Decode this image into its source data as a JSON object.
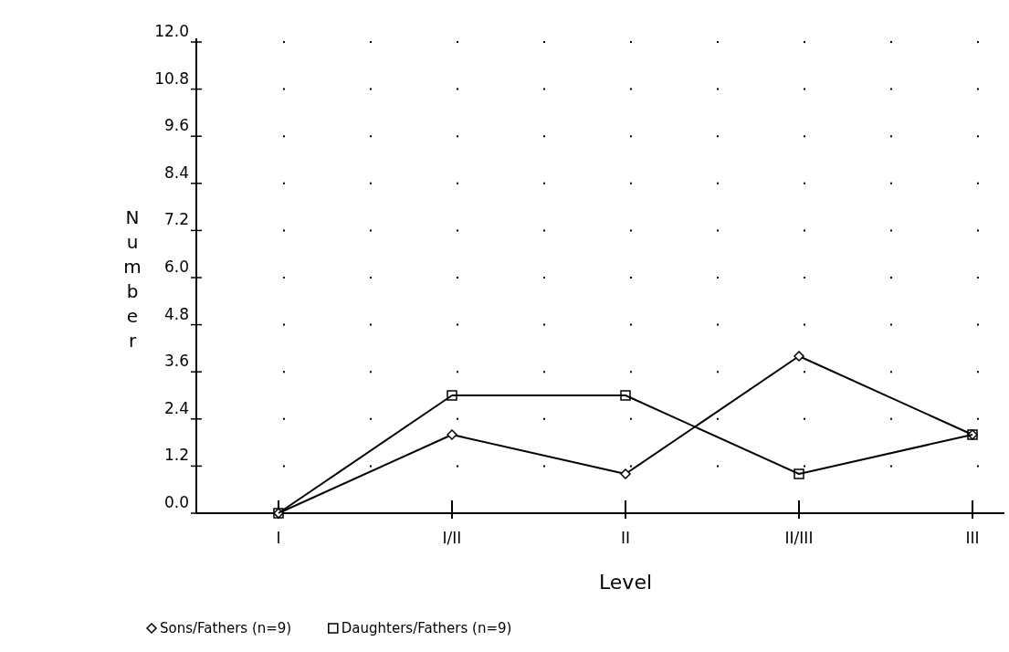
{
  "chart_data": {
    "type": "line",
    "xlabel": "Level",
    "ylabel": "Number",
    "categories": [
      "I",
      "I/II",
      "II",
      "II/III",
      "III"
    ],
    "series": [
      {
        "name": "Sons/Fathers (n=9)",
        "color": "#000000",
        "marker": "diamond",
        "values": [
          0,
          2,
          1,
          4,
          2
        ]
      },
      {
        "name": "Daughters/Fathers (n=9)",
        "color": "#000000",
        "marker": "square",
        "values": [
          0,
          3,
          3,
          1,
          2
        ]
      }
    ],
    "ylim": [
      0,
      12
    ],
    "yticks": [
      {
        "value": 0,
        "label": "0.0"
      },
      {
        "value": 1.2,
        "label": "1.2"
      },
      {
        "value": 2.4,
        "label": "2.4"
      },
      {
        "value": 3.6,
        "label": "3.6"
      },
      {
        "value": 4.8,
        "label": "4.8"
      },
      {
        "value": 6,
        "label": "6.0"
      },
      {
        "value": 7.2,
        "label": "7.2"
      },
      {
        "value": 8.4,
        "label": "8.4"
      },
      {
        "value": 9.6,
        "label": "9.6"
      },
      {
        "value": 10.8,
        "label": "10.8"
      },
      {
        "value": 12,
        "label": "12.0"
      }
    ],
    "grid": true,
    "legend": "bottom",
    "line_style": "solid"
  }
}
